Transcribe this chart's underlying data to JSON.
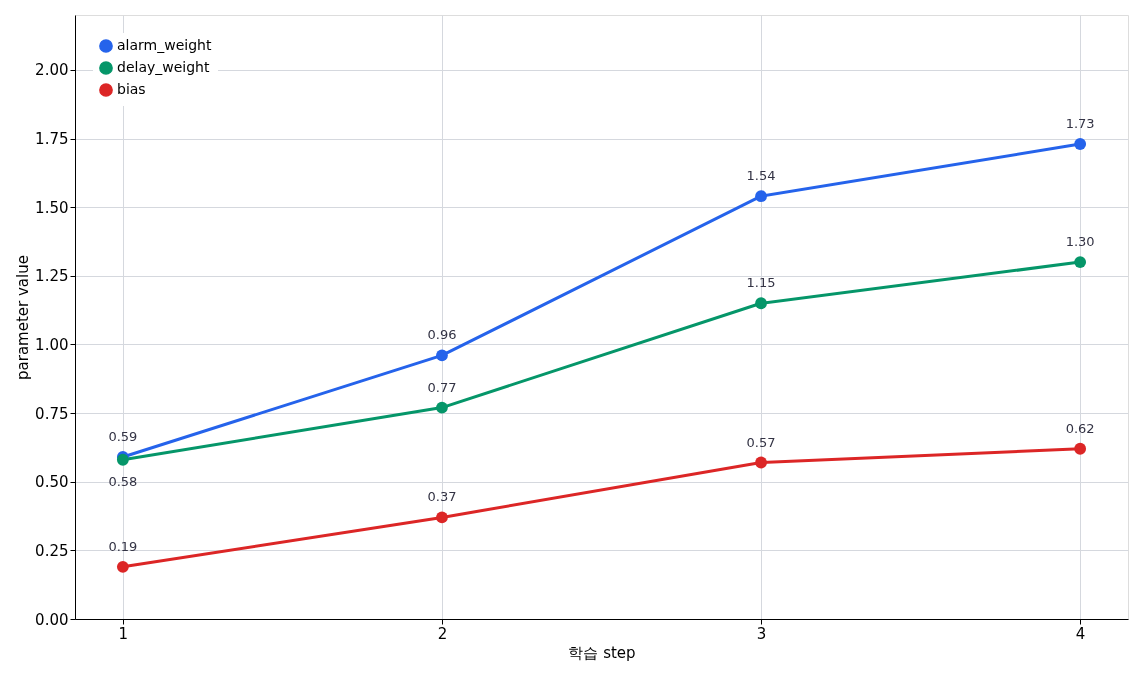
{
  "chart_data": {
    "type": "line",
    "xlabel": "학습 step",
    "ylabel": "parameter value",
    "x": [
      1,
      2,
      3,
      4
    ],
    "series": [
      {
        "name": "alarm_weight",
        "color": "#2563eb",
        "values": [
          0.59,
          0.96,
          1.54,
          1.73
        ],
        "value_labels": [
          "0.59",
          "0.96",
          "1.54",
          "1.73"
        ]
      },
      {
        "name": "delay_weight",
        "color": "#059669",
        "values": [
          0.58,
          0.77,
          1.15,
          1.3
        ],
        "value_labels": [
          "0.58",
          "0.77",
          "1.15",
          "1.30"
        ]
      },
      {
        "name": "bias",
        "color": "#dc2626",
        "values": [
          0.19,
          0.37,
          0.57,
          0.62
        ],
        "value_labels": [
          "0.19",
          "0.37",
          "0.57",
          "0.62"
        ]
      }
    ],
    "xlim": [
      0.85,
      4.15
    ],
    "xticks": [
      1,
      2,
      3,
      4
    ],
    "ylim": [
      0,
      2.2
    ],
    "yticks": [
      {
        "value": 0,
        "label": "0.00"
      },
      {
        "value": 0.25,
        "label": "0.25"
      },
      {
        "value": 0.5,
        "label": "0.50"
      },
      {
        "value": 0.75,
        "label": "0.75"
      },
      {
        "value": 1,
        "label": "1.00"
      },
      {
        "value": 1.25,
        "label": "1.25"
      },
      {
        "value": 1.5,
        "label": "1.50"
      },
      {
        "value": 1.75,
        "label": "1.75"
      },
      {
        "value": 2,
        "label": "2.00"
      }
    ],
    "grid": true,
    "legend": "top left",
    "marker": "circle",
    "line_style": "solid"
  }
}
